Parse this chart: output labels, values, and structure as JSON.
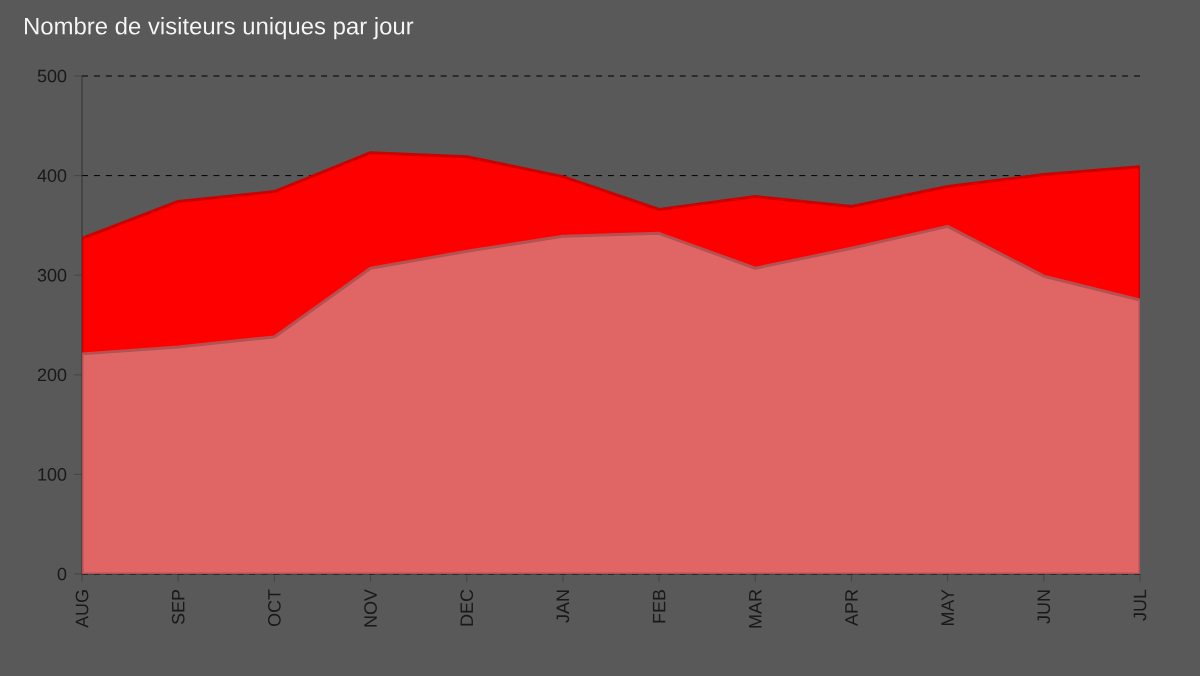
{
  "chart_data": {
    "type": "area",
    "title": "Nombre de visiteurs uniques par jour",
    "categories": [
      "AUG",
      "SEP",
      "OCT",
      "NOV",
      "DEC",
      "JAN",
      "FEB",
      "MAR",
      "APR",
      "MAY",
      "JUN",
      "JUL"
    ],
    "series": [
      {
        "color": "#ff0000",
        "values": [
          337,
          374,
          384,
          423,
          419,
          399,
          366,
          379,
          369,
          389,
          401,
          409
        ]
      },
      {
        "color": "#e06666",
        "values": [
          221,
          228,
          238,
          307,
          324,
          339,
          342,
          307,
          327,
          349,
          299,
          275
        ]
      }
    ],
    "ylim": [
      0,
      500
    ],
    "yticks": [
      0,
      100,
      200,
      300,
      400,
      500
    ],
    "grid": "y"
  }
}
